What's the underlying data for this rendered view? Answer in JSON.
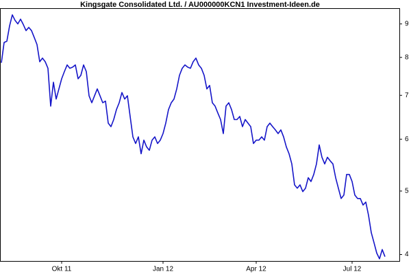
{
  "chart_data": {
    "type": "line",
    "title": "Kingsgate Consolidated Ltd. / AU000000KCN1 Investment-Ideen.de",
    "categories": [
      null,
      null,
      null,
      null,
      null,
      null,
      null,
      null,
      null,
      null,
      null,
      null,
      null,
      null,
      null,
      null,
      null,
      null,
      null,
      null,
      null,
      null,
      "Okt 11",
      null,
      null,
      null,
      null,
      null,
      null,
      null,
      null,
      null,
      null,
      null,
      null,
      null,
      null,
      null,
      null,
      null,
      null,
      null,
      null,
      null,
      null,
      null,
      null,
      null,
      null,
      null,
      null,
      null,
      null,
      null,
      null,
      null,
      null,
      null,
      null,
      "Jan 12",
      null,
      null,
      null,
      null,
      null,
      null,
      null,
      null,
      null,
      null,
      null,
      null,
      null,
      null,
      null,
      null,
      null,
      null,
      null,
      null,
      null,
      null,
      null,
      null,
      null,
      null,
      null,
      null,
      null,
      null,
      null,
      null,
      null,
      "Apr 12",
      null,
      null,
      null,
      null,
      null,
      null,
      null,
      null,
      null,
      null,
      null,
      null,
      null,
      null,
      null,
      null,
      null,
      null,
      null,
      null,
      null,
      null,
      null,
      null,
      null,
      null,
      null,
      null,
      null,
      null,
      null,
      null,
      null,
      null,
      "Jul 12",
      null,
      null,
      null,
      null,
      null,
      null,
      null,
      null,
      null,
      null,
      null,
      null
    ],
    "values": [
      7.85,
      8.43,
      8.47,
      8.94,
      9.29,
      9.11,
      9.0,
      9.15,
      8.98,
      8.79,
      8.89,
      8.79,
      8.58,
      8.37,
      7.88,
      7.98,
      7.88,
      7.7,
      6.74,
      7.33,
      6.91,
      7.16,
      7.42,
      7.61,
      7.79,
      7.7,
      7.73,
      7.79,
      7.42,
      7.51,
      7.79,
      7.61,
      6.99,
      6.82,
      6.99,
      7.16,
      6.99,
      6.82,
      6.86,
      6.35,
      6.27,
      6.43,
      6.66,
      6.82,
      7.07,
      6.91,
      6.99,
      6.5,
      6.05,
      5.91,
      6.05,
      5.7,
      5.98,
      5.84,
      5.77,
      5.98,
      6.05,
      5.91,
      5.98,
      6.12,
      6.35,
      6.66,
      6.82,
      6.91,
      7.16,
      7.51,
      7.7,
      7.79,
      7.73,
      7.7,
      7.88,
      7.98,
      7.79,
      7.7,
      7.51,
      7.16,
      7.25,
      6.82,
      6.74,
      6.58,
      6.43,
      6.12,
      6.74,
      6.82,
      6.66,
      6.43,
      6.43,
      6.5,
      6.27,
      6.43,
      6.35,
      6.27,
      5.91,
      5.98,
      5.98,
      6.05,
      5.98,
      6.27,
      6.35,
      6.27,
      6.2,
      6.12,
      6.2,
      6.05,
      5.84,
      5.7,
      5.5,
      5.11,
      5.05,
      5.11,
      4.99,
      5.05,
      5.24,
      5.17,
      5.3,
      5.5,
      5.88,
      5.63,
      5.5,
      5.63,
      5.56,
      5.5,
      5.24,
      5.05,
      4.87,
      4.93,
      5.3,
      5.3,
      5.17,
      4.93,
      4.87,
      4.87,
      4.76,
      4.81,
      4.59,
      4.32,
      4.17,
      4.02,
      3.94,
      4.07,
      3.97
    ],
    "color": "#1414c8",
    "ylim": [
      3.91,
      9.51
    ],
    "yticks": [
      4,
      5,
      6,
      7,
      8,
      9
    ],
    "log_scale": true,
    "y_axis_side": "right"
  }
}
